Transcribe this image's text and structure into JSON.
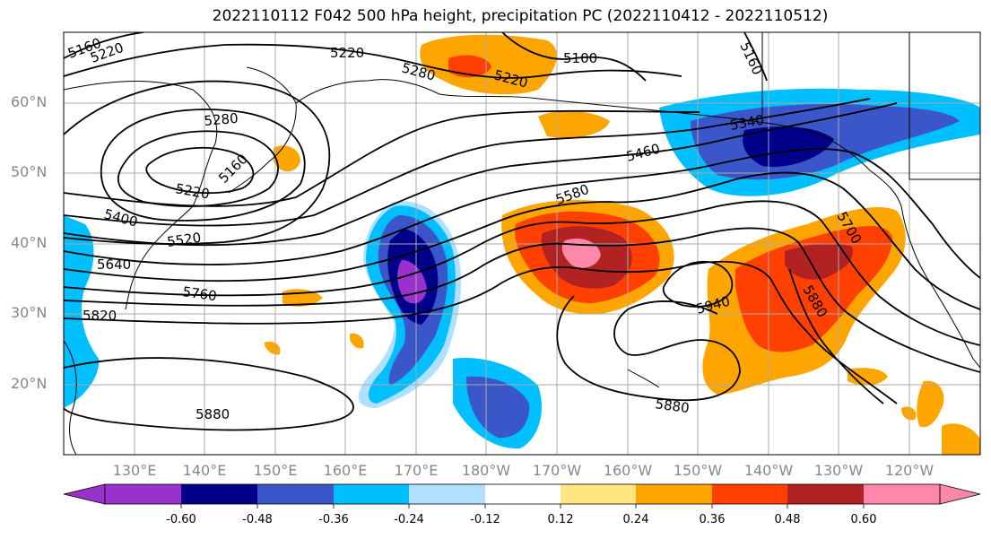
{
  "title": "2022110112 F042 500 hPa height, precipitation PC (2022110412 - 2022110512)",
  "lat_labels": [
    "60°N",
    "50°N",
    "40°N",
    "30°N",
    "20°N"
  ],
  "lon_labels": [
    "130°E",
    "140°E",
    "150°E",
    "160°E",
    "170°E",
    "180°W",
    "170°W",
    "160°W",
    "150°W",
    "140°W",
    "130°W",
    "120°W"
  ],
  "contour_labels": [
    "5160",
    "5220",
    "5220",
    "5280",
    "5220",
    "5100",
    "5160",
    "5280",
    "5160",
    "5220",
    "5340",
    "5460",
    "5400",
    "5520",
    "5580",
    "5640",
    "5760",
    "5820",
    "5700",
    "5940",
    "5880",
    "5880",
    "5880"
  ],
  "colorbar": {
    "tick_labels": [
      "-0.60",
      "-0.48",
      "-0.36",
      "-0.24",
      "-0.12",
      "0.12",
      "0.24",
      "0.36",
      "0.48",
      "0.60"
    ],
    "colors": [
      "#9932cc",
      "#00008b",
      "#3a56c8",
      "#00bfff",
      "#b0e0ff",
      "#ffffff",
      "#ffe680",
      "#ffa500",
      "#ff4000",
      "#b22222",
      "#ff88aa"
    ]
  }
}
